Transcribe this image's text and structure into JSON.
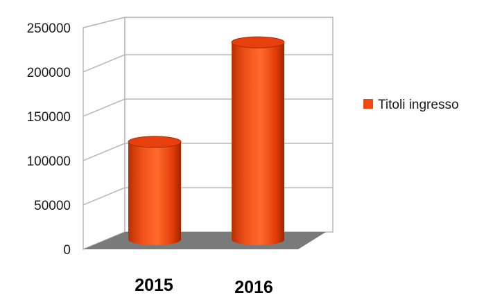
{
  "chart_data": {
    "type": "bar",
    "style": "3d-cylinder",
    "categories": [
      "2015",
      "2016"
    ],
    "series": [
      {
        "name": "Titoli ingresso",
        "values": [
          103000,
          208000
        ]
      }
    ],
    "ylim": [
      0,
      250000
    ],
    "yticks": [
      0,
      50000,
      100000,
      150000,
      200000,
      250000
    ],
    "ytick_labels": [
      "0",
      "50000",
      "100000",
      "150000",
      "200000",
      "250000"
    ],
    "grid": true,
    "legend_position": "right",
    "colors": {
      "bar": "#f04a12",
      "bar_dark": "#a82a00",
      "bar_light": "#ff7b3a",
      "bar_top": "#e8400c",
      "floor": "#7a7a7a",
      "grid": "#b8b8b8"
    }
  }
}
